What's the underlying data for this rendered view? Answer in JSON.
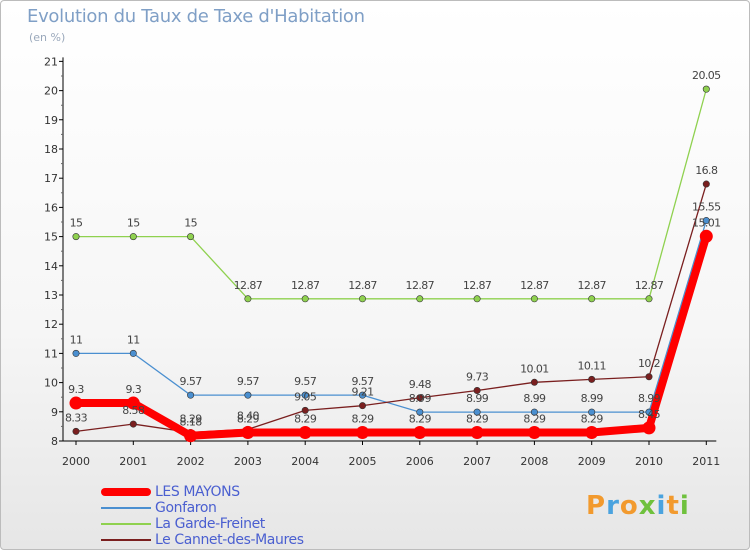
{
  "title": "Evolution du Taux de Taxe d'Habitation",
  "subtitle": "(en %)",
  "logo": {
    "letters": [
      "P",
      "r",
      "o",
      "x",
      "i",
      "t",
      "i"
    ],
    "colors": [
      "#f29a2e",
      "#4aa3df",
      "#f29a2e",
      "#6fc13d",
      "#4aa3df",
      "#f29a2e",
      "#6fc13d"
    ]
  },
  "chart_data": {
    "type": "line",
    "x": [
      "2000",
      "2001",
      "2002",
      "2003",
      "2004",
      "2005",
      "2006",
      "2007",
      "2008",
      "2009",
      "2010",
      "2011"
    ],
    "ylim": [
      8,
      21
    ],
    "yticks": [
      "8",
      "9",
      "10",
      "11",
      "12",
      "13",
      "14",
      "15",
      "16",
      "17",
      "18",
      "19",
      "20",
      "21"
    ],
    "grid": false,
    "legend": "bottom-left",
    "series": [
      {
        "name": "LES MAYONS",
        "color": "#ff0000",
        "values": [
          9.3,
          9.3,
          8.18,
          8.29,
          8.29,
          8.29,
          8.29,
          8.29,
          8.29,
          8.29,
          8.45,
          15.01
        ],
        "labels": [
          "9.3",
          "9.3",
          "8.18",
          "8.29",
          "8.29",
          "8.29",
          "8.29",
          "8.29",
          "8.29",
          "8.29",
          "8.45",
          "15.01"
        ]
      },
      {
        "name": "Gonfaron",
        "color": "#4a8fd0",
        "values": [
          11,
          11,
          9.57,
          9.57,
          9.57,
          9.57,
          8.99,
          8.99,
          8.99,
          8.99,
          8.99,
          15.55
        ],
        "labels": [
          "11",
          "11",
          "9.57",
          "9.57",
          "9.57",
          "9.57",
          "8.99",
          "8.99",
          "8.99",
          "8.99",
          "8.99",
          "15.55"
        ]
      },
      {
        "name": "La Garde-Freinet",
        "color": "#8fd14f",
        "values": [
          15,
          15,
          15,
          12.87,
          12.87,
          12.87,
          12.87,
          12.87,
          12.87,
          12.87,
          12.87,
          20.05
        ],
        "labels": [
          "15",
          "15",
          "15",
          "12.87",
          "12.87",
          "12.87",
          "12.87",
          "12.87",
          "12.87",
          "12.87",
          "12.87",
          "20.05"
        ]
      },
      {
        "name": "Le Cannet-des-Maures",
        "color": "#7a1f1f",
        "values": [
          8.33,
          8.58,
          8.29,
          8.4,
          9.05,
          9.21,
          9.48,
          9.73,
          10.01,
          10.11,
          10.2,
          16.8
        ],
        "labels": [
          "8.33",
          "8.58",
          "8.29",
          "8.40",
          "9.05",
          "9.21",
          "9.48",
          "9.73",
          "10.01",
          "10.11",
          "10.2",
          "16.8"
        ]
      }
    ]
  }
}
